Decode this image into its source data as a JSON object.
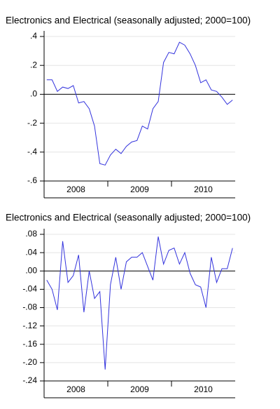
{
  "chart_data": [
    {
      "type": "line",
      "title": "Electronics and Electrical (seasonally adjusted; 2000=100)",
      "categories": [
        null,
        null,
        null,
        null,
        null,
        null,
        "2008",
        null,
        null,
        null,
        null,
        null,
        null,
        null,
        null,
        null,
        null,
        null,
        "2009",
        null,
        null,
        null,
        null,
        null,
        null,
        null,
        null,
        null,
        null,
        null,
        "2010",
        null,
        null,
        null,
        null,
        null
      ],
      "series": [
        {
          "name": null,
          "color": "#3333dd",
          "values": [
            0.1,
            0.1,
            0.02,
            0.05,
            0.04,
            0.06,
            -0.06,
            -0.05,
            -0.1,
            -0.22,
            -0.48,
            -0.49,
            -0.42,
            -0.38,
            -0.41,
            -0.36,
            -0.33,
            -0.32,
            -0.22,
            -0.24,
            -0.1,
            -0.05,
            0.22,
            0.29,
            0.28,
            0.36,
            0.34,
            0.28,
            0.2,
            0.08,
            0.1,
            0.03,
            0.02,
            -0.02,
            -0.07,
            -0.04
          ]
        }
      ],
      "ylim": [
        -0.6,
        0.4
      ],
      "yticks": [
        {
          "value": 0.4,
          "label": ".4"
        },
        {
          "value": 0.2,
          "label": ".2"
        },
        {
          "value": 0,
          "label": ".0"
        },
        {
          "value": -0.2,
          "label": "-.2"
        },
        {
          "value": -0.4,
          "label": "-.4"
        },
        {
          "value": -0.6,
          "label": "-.6"
        }
      ],
      "grid": true,
      "zero_line": true
    },
    {
      "type": "line",
      "title": "Electronics and Electrical (seasonally adjusted; 2000=100)",
      "categories": [
        null,
        null,
        null,
        null,
        null,
        null,
        "2008",
        null,
        null,
        null,
        null,
        null,
        null,
        null,
        null,
        null,
        null,
        null,
        "2009",
        null,
        null,
        null,
        null,
        null,
        null,
        null,
        null,
        null,
        null,
        null,
        "2010",
        null,
        null,
        null,
        null,
        null
      ],
      "series": [
        {
          "name": null,
          "color": "#3333dd",
          "values": [
            -0.02,
            -0.04,
            -0.085,
            0.065,
            -0.025,
            -0.01,
            0.035,
            -0.09,
            0.0,
            -0.06,
            -0.045,
            -0.215,
            -0.03,
            0.03,
            -0.04,
            0.02,
            0.03,
            0.03,
            0.04,
            0.01,
            -0.02,
            0.075,
            0.015,
            0.045,
            0.05,
            0.015,
            0.04,
            -0.005,
            -0.03,
            -0.035,
            -0.08,
            0.03,
            -0.025,
            0.005,
            0.005,
            0.05
          ]
        }
      ],
      "ylim": [
        -0.24,
        0.08
      ],
      "yticks": [
        {
          "value": 0.08,
          "label": ".08"
        },
        {
          "value": 0.04,
          "label": ".04"
        },
        {
          "value": 0,
          "label": ".00"
        },
        {
          "value": -0.04,
          "label": "-.04"
        },
        {
          "value": -0.08,
          "label": "-.08"
        },
        {
          "value": -0.12,
          "label": "-.12"
        },
        {
          "value": -0.16,
          "label": "-.16"
        },
        {
          "value": -0.2,
          "label": "-.20"
        },
        {
          "value": -0.24,
          "label": "-.24"
        }
      ],
      "grid": true,
      "zero_line": true
    }
  ]
}
